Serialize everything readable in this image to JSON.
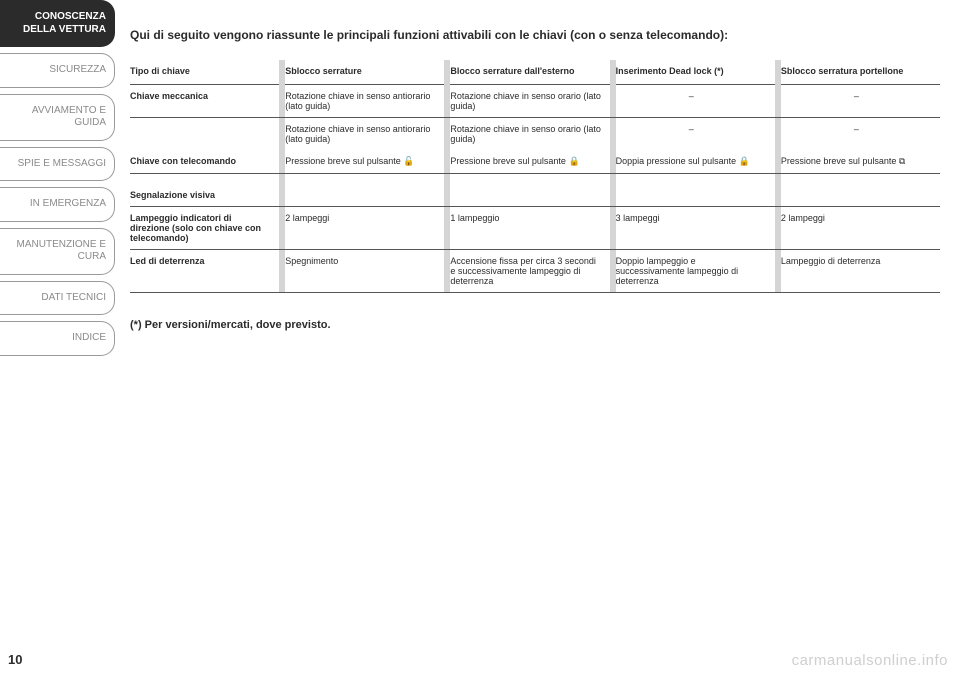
{
  "sidebar": {
    "items": [
      "CONOSCENZA DELLA VETTURA",
      "SICUREZZA",
      "AVVIAMENTO E GUIDA",
      "SPIE E MESSAGGI",
      "IN EMERGENZA",
      "MANUTENZIONE E CURA",
      "DATI TECNICI",
      "INDICE"
    ],
    "active_index": 0
  },
  "intro": "Qui di seguito vengono riassunte le principali funzioni attivabili con le chiavi (con o senza telecomando):",
  "columns": [
    "Tipo di chiave",
    "Sblocco serrature",
    "Blocco serrature dall'esterno",
    "Inserimento Dead lock (*)",
    "Sblocco serratura portellone"
  ],
  "rows": [
    {
      "lead": "Chiave meccanica",
      "cells": [
        "Rotazione chiave in senso antiorario (lato guida)",
        "Rotazione chiave in senso orario (lato guida)",
        "–",
        "–"
      ],
      "divider": true
    },
    {
      "lead": "",
      "cells": [
        "Rotazione chiave in senso antiorario (lato guida)",
        "Rotazione chiave in senso orario (lato guida)",
        "–",
        "–"
      ],
      "divider": false
    },
    {
      "lead": "Chiave con telecomando",
      "cells": [
        "Pressione breve sul pulsante",
        "Pressione breve sul pulsante",
        "Doppia pressione sul pulsante",
        "Pressione breve sul pulsante"
      ],
      "icons": [
        "unlock",
        "lock",
        "lock",
        "trunk"
      ],
      "divider": true
    }
  ],
  "section2_header": "Segnalazione visiva",
  "rows2": [
    {
      "lead": "Lampeggio indicatori di direzione (solo con chiave con telecomando)",
      "cells": [
        "2 lampeggi",
        "1 lampeggio",
        "3 lampeggi",
        "2 lampeggi"
      ],
      "divider": true
    },
    {
      "lead": "Led di deterrenza",
      "cells": [
        "Spegnimento",
        "Accensione fissa per circa 3 secondi e successivamente lampeggio di deterrenza",
        "Doppio lampeggio e successivamente lampeggio di deterrenza",
        "Lampeggio di deterrenza"
      ],
      "divider": true
    }
  ],
  "footnote": "(*) Per versioni/mercati, dove previsto.",
  "page_number": "10",
  "watermark": "carmanualsonline.info",
  "colors": {
    "text": "#2b2b2b",
    "muted": "#8a8a8a",
    "separator_bg": "#d5d5d5",
    "rule": "#555555",
    "watermark": "#cfcfcf"
  }
}
